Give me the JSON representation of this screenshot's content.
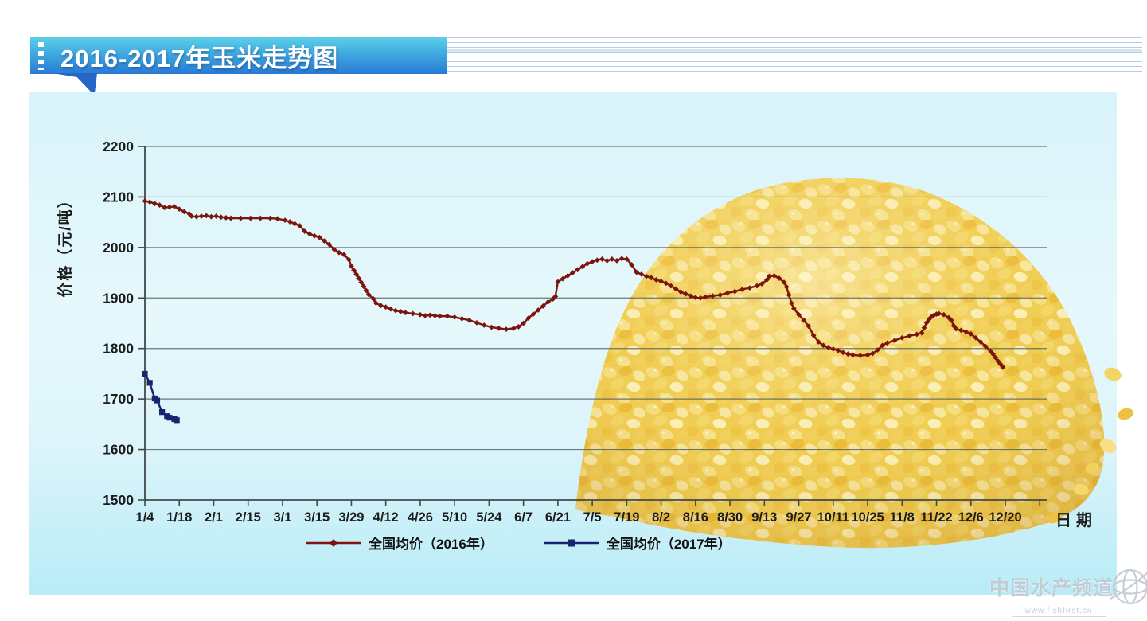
{
  "banner": {
    "title": "2016-2017年玉米走势图"
  },
  "colors": {
    "banner_top": "#5bcfe8",
    "banner_bottom": "#2a7ad6",
    "panel_top": "#d8f3f9",
    "panel_bottom": "#b9ecf7",
    "grid": "#4f5b5b",
    "axis": "#3f4a4a",
    "tick_label": "#1b1b1b",
    "series_2016": "#7b150d",
    "series_2017": "#17246e"
  },
  "watermark": {
    "site_name": "中国水产频道",
    "site_url": "www.fishfirst.cn"
  },
  "chart_data": {
    "type": "line",
    "title": "2016-2017年玉米走势图",
    "xlabel": "日期",
    "ylabel": "价格（元/吨）",
    "ylim": [
      1500,
      2200
    ],
    "yticks": [
      1500,
      1600,
      1700,
      1800,
      1900,
      2000,
      2100,
      2200
    ],
    "xticks": [
      "1/4",
      "1/18",
      "2/1",
      "2/15",
      "3/1",
      "3/15",
      "3/29",
      "4/12",
      "4/26",
      "5/10",
      "5/24",
      "6/7",
      "6/21",
      "7/5",
      "7/19",
      "8/2",
      "8/16",
      "8/30",
      "9/13",
      "9/27",
      "10/11",
      "10/25",
      "11/8",
      "11/22",
      "12/6",
      "12/20"
    ],
    "days_per_tick": 14,
    "x_unit": "days since 1/4",
    "grid": true,
    "legend_position": "bottom",
    "series": [
      {
        "name": "全国均价（2016年）",
        "color": "#7b150d",
        "marker": "diamond",
        "points": [
          [
            0,
            2092
          ],
          [
            2,
            2090
          ],
          [
            4,
            2087
          ],
          [
            6,
            2084
          ],
          [
            8,
            2079
          ],
          [
            10,
            2080
          ],
          [
            12,
            2081
          ],
          [
            14,
            2076
          ],
          [
            16,
            2071
          ],
          [
            18,
            2067
          ],
          [
            19,
            2062
          ],
          [
            21,
            2061
          ],
          [
            23,
            2062
          ],
          [
            25,
            2063
          ],
          [
            27,
            2061
          ],
          [
            29,
            2062
          ],
          [
            31,
            2060
          ],
          [
            33,
            2059
          ],
          [
            35,
            2058
          ],
          [
            39,
            2058
          ],
          [
            43,
            2058
          ],
          [
            47,
            2058
          ],
          [
            51,
            2058
          ],
          [
            54,
            2057
          ],
          [
            57,
            2054
          ],
          [
            59,
            2051
          ],
          [
            61,
            2047
          ],
          [
            63,
            2043
          ],
          [
            65,
            2032
          ],
          [
            67,
            2027
          ],
          [
            69,
            2023
          ],
          [
            71,
            2020
          ],
          [
            73,
            2013
          ],
          [
            75,
            2006
          ],
          [
            77,
            1996
          ],
          [
            79,
            1990
          ],
          [
            81,
            1986
          ],
          [
            83,
            1976
          ],
          [
            84,
            1963
          ],
          [
            85,
            1955
          ],
          [
            86,
            1947
          ],
          [
            87,
            1939
          ],
          [
            88,
            1931
          ],
          [
            89,
            1923
          ],
          [
            90,
            1915
          ],
          [
            91,
            1907
          ],
          [
            93,
            1898
          ],
          [
            94,
            1890
          ],
          [
            96,
            1885
          ],
          [
            98,
            1882
          ],
          [
            100,
            1878
          ],
          [
            102,
            1875
          ],
          [
            104,
            1873
          ],
          [
            106,
            1871
          ],
          [
            109,
            1869
          ],
          [
            112,
            1867
          ],
          [
            114,
            1865
          ],
          [
            116,
            1866
          ],
          [
            118,
            1865
          ],
          [
            120,
            1864
          ],
          [
            123,
            1864
          ],
          [
            126,
            1862
          ],
          [
            129,
            1859
          ],
          [
            132,
            1856
          ],
          [
            135,
            1851
          ],
          [
            138,
            1846
          ],
          [
            141,
            1842
          ],
          [
            144,
            1840
          ],
          [
            147,
            1838
          ],
          [
            150,
            1840
          ],
          [
            152,
            1843
          ],
          [
            154,
            1850
          ],
          [
            156,
            1860
          ],
          [
            158,
            1868
          ],
          [
            160,
            1876
          ],
          [
            162,
            1884
          ],
          [
            164,
            1892
          ],
          [
            166,
            1898
          ],
          [
            167,
            1903
          ],
          [
            168,
            1932
          ],
          [
            170,
            1938
          ],
          [
            172,
            1944
          ],
          [
            174,
            1950
          ],
          [
            176,
            1956
          ],
          [
            178,
            1962
          ],
          [
            180,
            1968
          ],
          [
            182,
            1972
          ],
          [
            184,
            1975
          ],
          [
            186,
            1977
          ],
          [
            188,
            1974
          ],
          [
            190,
            1977
          ],
          [
            192,
            1974
          ],
          [
            194,
            1978
          ],
          [
            196,
            1977
          ],
          [
            198,
            1966
          ],
          [
            200,
            1951
          ],
          [
            202,
            1947
          ],
          [
            204,
            1943
          ],
          [
            206,
            1940
          ],
          [
            208,
            1936
          ],
          [
            210,
            1933
          ],
          [
            212,
            1929
          ],
          [
            214,
            1924
          ],
          [
            216,
            1918
          ],
          [
            218,
            1912
          ],
          [
            220,
            1908
          ],
          [
            222,
            1904
          ],
          [
            224,
            1901
          ],
          [
            226,
            1900
          ],
          [
            228,
            1902
          ],
          [
            231,
            1904
          ],
          [
            234,
            1906
          ],
          [
            237,
            1910
          ],
          [
            240,
            1913
          ],
          [
            243,
            1917
          ],
          [
            246,
            1920
          ],
          [
            249,
            1924
          ],
          [
            251,
            1928
          ],
          [
            253,
            1936
          ],
          [
            254,
            1943
          ],
          [
            256,
            1944
          ],
          [
            258,
            1939
          ],
          [
            260,
            1931
          ],
          [
            261,
            1922
          ],
          [
            262,
            1906
          ],
          [
            263,
            1890
          ],
          [
            264,
            1879
          ],
          [
            266,
            1867
          ],
          [
            268,
            1856
          ],
          [
            270,
            1844
          ],
          [
            272,
            1826
          ],
          [
            274,
            1813
          ],
          [
            276,
            1806
          ],
          [
            278,
            1802
          ],
          [
            280,
            1799
          ],
          [
            282,
            1796
          ],
          [
            284,
            1792
          ],
          [
            286,
            1789
          ],
          [
            288,
            1787
          ],
          [
            291,
            1786
          ],
          [
            294,
            1787
          ],
          [
            296,
            1790
          ],
          [
            298,
            1797
          ],
          [
            300,
            1806
          ],
          [
            302,
            1811
          ],
          [
            305,
            1816
          ],
          [
            308,
            1821
          ],
          [
            311,
            1825
          ],
          [
            314,
            1828
          ],
          [
            316,
            1831
          ],
          [
            317,
            1841
          ],
          [
            318,
            1851
          ],
          [
            319,
            1858
          ],
          [
            320,
            1863
          ],
          [
            321,
            1866
          ],
          [
            322,
            1868
          ],
          [
            323,
            1869
          ],
          [
            325,
            1867
          ],
          [
            327,
            1861
          ],
          [
            328,
            1856
          ],
          [
            329,
            1845
          ],
          [
            330,
            1839
          ],
          [
            332,
            1836
          ],
          [
            334,
            1833
          ],
          [
            336,
            1829
          ],
          [
            338,
            1821
          ],
          [
            340,
            1813
          ],
          [
            342,
            1804
          ],
          [
            344,
            1795
          ],
          [
            345,
            1789
          ],
          [
            346,
            1782
          ],
          [
            347,
            1775
          ],
          [
            348,
            1769
          ],
          [
            349,
            1763
          ]
        ]
      },
      {
        "name": "全国均价（2017年）",
        "color": "#17246e",
        "marker": "square",
        "points": [
          [
            0,
            1750
          ],
          [
            2,
            1732
          ],
          [
            4,
            1701
          ],
          [
            5,
            1697
          ],
          [
            7,
            1674
          ],
          [
            9,
            1666
          ],
          [
            10,
            1663
          ],
          [
            12,
            1660
          ],
          [
            13,
            1658
          ]
        ]
      }
    ]
  }
}
